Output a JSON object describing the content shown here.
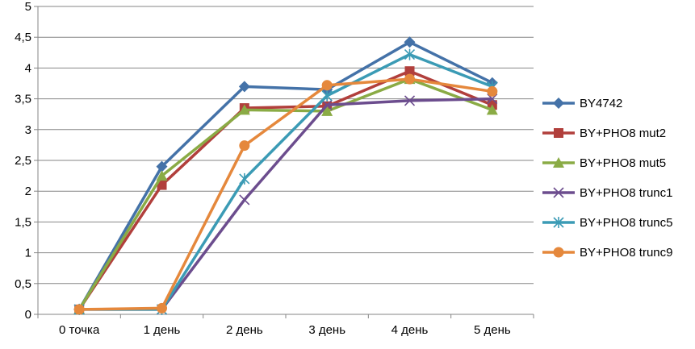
{
  "chart_data": {
    "type": "line",
    "title": "",
    "xlabel": "",
    "ylabel": "",
    "categories": [
      "0 точка",
      "1 день",
      "2 день",
      "3 день",
      "4 день",
      "5 день"
    ],
    "ylim": [
      0,
      5
    ],
    "yticks": [
      "0",
      "0,5",
      "1",
      "1,5",
      "2",
      "2,5",
      "3",
      "3,5",
      "4",
      "4,5",
      "5"
    ],
    "grid": "horizontal",
    "legend_position": "right",
    "series": [
      {
        "name": "BY4742",
        "color": "#4472a8",
        "marker": "diamond",
        "values": [
          0.08,
          2.4,
          3.7,
          3.65,
          4.42,
          3.76
        ]
      },
      {
        "name": "BY+PHO8 mut2",
        "color": "#b13f3c",
        "marker": "square",
        "values": [
          0.08,
          2.1,
          3.35,
          3.38,
          3.95,
          3.4
        ]
      },
      {
        "name": "BY+PHO8 mut5",
        "color": "#8aab45",
        "marker": "triangle",
        "values": [
          0.08,
          2.25,
          3.32,
          3.3,
          3.82,
          3.32
        ]
      },
      {
        "name": "BY+PHO8 trunc1",
        "color": "#6c4d8e",
        "marker": "x",
        "values": [
          0.08,
          0.08,
          1.86,
          3.4,
          3.47,
          3.5
        ]
      },
      {
        "name": "BY+PHO8 trunc5",
        "color": "#3b9bb5",
        "marker": "star",
        "values": [
          0.08,
          0.08,
          2.2,
          3.55,
          4.22,
          3.7
        ]
      },
      {
        "name": "BY+PHO8 trunc9",
        "color": "#e5883c",
        "marker": "circle",
        "values": [
          0.08,
          0.1,
          2.74,
          3.72,
          3.82,
          3.62
        ]
      }
    ]
  }
}
